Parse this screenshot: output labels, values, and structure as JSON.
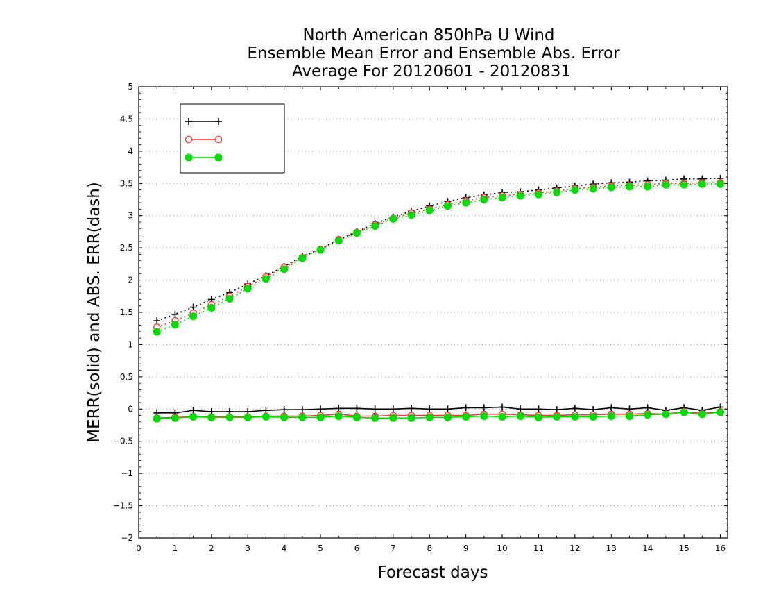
{
  "chart_data": {
    "type": "line",
    "title": "North American 850hPa U Wind",
    "subtitle": "Ensemble Mean Error and Ensemble Abs. Error",
    "subtitle2": "Average For 20120601 - 20120831",
    "xlabel": "Forecast days",
    "ylabel": "MERR(solid) and ABS. ERR(dash)",
    "xlim": [
      0,
      16.2
    ],
    "ylim": [
      -2,
      5
    ],
    "xticks": [
      "0",
      "1",
      "2",
      "3",
      "4",
      "5",
      "6",
      "7",
      "8",
      "9",
      "10",
      "11",
      "12",
      "13",
      "14",
      "15",
      "16"
    ],
    "yticks": [
      "−2",
      "−1.5",
      "−1",
      "−0.5",
      "0",
      "0.5",
      "1",
      "1.5",
      "2",
      "2.5",
      "3",
      "3.5",
      "4",
      "4.5",
      "5"
    ],
    "grid": true,
    "legend_position": "top-left",
    "x": [
      0.5,
      1,
      1.5,
      2,
      2.5,
      3,
      3.5,
      4,
      4.5,
      5,
      5.5,
      6,
      6.5,
      7,
      7.5,
      8,
      8.5,
      9,
      9.5,
      10,
      10.5,
      11,
      11.5,
      12,
      12.5,
      13,
      13.5,
      14,
      14.5,
      15,
      15.5,
      16
    ],
    "series": [
      {
        "name": "",
        "color": "#000000",
        "marker": "plus",
        "merr": [
          -0.06,
          -0.06,
          -0.02,
          -0.04,
          -0.04,
          -0.04,
          -0.02,
          -0.01,
          -0.01,
          0.0,
          0.01,
          0.01,
          0.0,
          0.0,
          0.01,
          0.0,
          0.0,
          0.02,
          0.02,
          0.03,
          0.0,
          0.0,
          -0.01,
          0.01,
          -0.01,
          0.02,
          0.0,
          0.02,
          -0.02,
          0.02,
          -0.02,
          0.03
        ],
        "abserr": [
          1.37,
          1.47,
          1.58,
          1.7,
          1.81,
          1.94,
          2.07,
          2.21,
          2.37,
          2.48,
          2.63,
          2.75,
          2.88,
          2.98,
          3.07,
          3.15,
          3.22,
          3.28,
          3.32,
          3.36,
          3.37,
          3.4,
          3.43,
          3.46,
          3.49,
          3.51,
          3.52,
          3.54,
          3.55,
          3.57,
          3.57,
          3.58
        ]
      },
      {
        "name": "",
        "color": "#ff3030",
        "marker": "open-circle",
        "merr": [
          -0.14,
          -0.13,
          -0.12,
          -0.12,
          -0.12,
          -0.12,
          -0.11,
          -0.11,
          -0.11,
          -0.1,
          -0.08,
          -0.11,
          -0.11,
          -0.1,
          -0.1,
          -0.1,
          -0.1,
          -0.1,
          -0.08,
          -0.08,
          -0.09,
          -0.1,
          -0.1,
          -0.09,
          -0.09,
          -0.08,
          -0.08,
          -0.07,
          -0.08,
          -0.04,
          -0.07,
          -0.04
        ],
        "abserr": [
          1.27,
          1.37,
          1.49,
          1.62,
          1.75,
          1.9,
          2.05,
          2.2,
          2.35,
          2.48,
          2.63,
          2.74,
          2.86,
          2.96,
          3.04,
          3.1,
          3.17,
          3.23,
          3.28,
          3.31,
          3.33,
          3.35,
          3.38,
          3.42,
          3.44,
          3.46,
          3.47,
          3.48,
          3.5,
          3.5,
          3.51,
          3.51
        ]
      },
      {
        "name": "",
        "color": "#00dd00",
        "marker": "filled-circle",
        "merr": [
          -0.15,
          -0.14,
          -0.12,
          -0.13,
          -0.13,
          -0.13,
          -0.12,
          -0.13,
          -0.13,
          -0.13,
          -0.11,
          -0.13,
          -0.14,
          -0.14,
          -0.14,
          -0.13,
          -0.13,
          -0.12,
          -0.11,
          -0.12,
          -0.11,
          -0.13,
          -0.12,
          -0.12,
          -0.12,
          -0.11,
          -0.11,
          -0.09,
          -0.08,
          -0.05,
          -0.08,
          -0.05
        ],
        "abserr": [
          1.2,
          1.31,
          1.44,
          1.57,
          1.71,
          1.87,
          2.02,
          2.17,
          2.34,
          2.47,
          2.61,
          2.73,
          2.84,
          2.95,
          3.01,
          3.08,
          3.15,
          3.2,
          3.25,
          3.28,
          3.31,
          3.33,
          3.36,
          3.4,
          3.42,
          3.44,
          3.45,
          3.45,
          3.48,
          3.48,
          3.49,
          3.49
        ]
      }
    ]
  }
}
